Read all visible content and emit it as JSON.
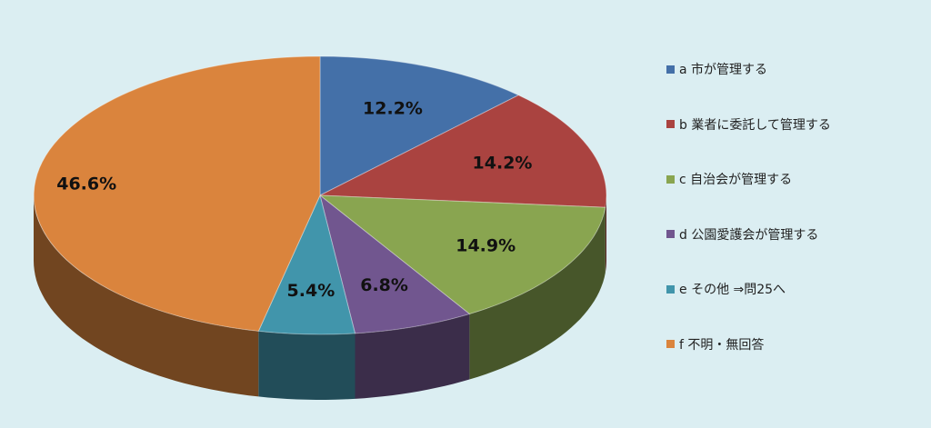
{
  "chart_data": {
    "type": "pie",
    "categories": [
      "a 市が管理する",
      "b 業者に委託して管理する",
      "c 自治会が管理する",
      "d 公園愛護会が管理する",
      "e その他 ⇒問25へ",
      "f 不明・無回答"
    ],
    "values": [
      12.2,
      14.2,
      14.9,
      6.8,
      5.4,
      46.6
    ],
    "labels": [
      "12.2%",
      "14.2%",
      "14.9%",
      "6.8%",
      "5.4%",
      "46.6%"
    ],
    "colors": [
      "#4470a8",
      "#aa4340",
      "#89a550",
      "#71568f",
      "#4195ab",
      "#da843d"
    ],
    "legend_position": "right",
    "three_d": true
  }
}
